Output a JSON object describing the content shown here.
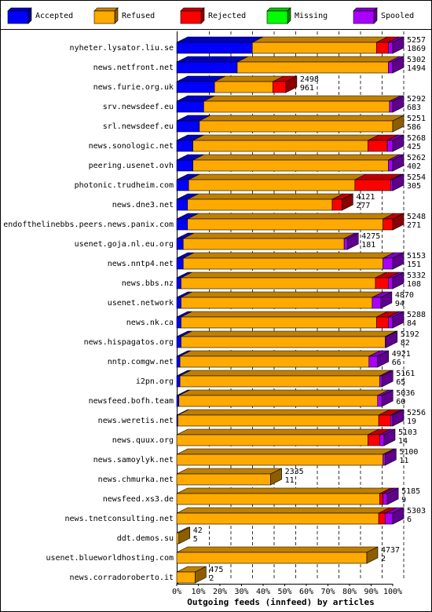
{
  "chart_data": {
    "type": "bar",
    "orientation": "horizontal",
    "stacked": true,
    "title": "Outgoing feeds (innfeed) by articles",
    "xlabel": "",
    "ylabel": "",
    "xlim": [
      0,
      100
    ],
    "x_unit": "%",
    "x_ticks": [
      "0%",
      "10%",
      "20%",
      "30%",
      "40%",
      "50%",
      "60%",
      "70%",
      "80%",
      "90%",
      "100%"
    ],
    "grid": true,
    "legend_position": "top",
    "series": [
      {
        "name": "Accepted",
        "color": "#0000ff"
      },
      {
        "name": "Refused",
        "color": "#ffaa00"
      },
      {
        "name": "Rejected",
        "color": "#ff0000"
      },
      {
        "name": "Missing",
        "color": "#00ff00"
      },
      {
        "name": "Spooled",
        "color": "#aa00ff"
      }
    ],
    "rows": [
      {
        "name": "nyheter.lysator.liu.se",
        "total": "5257",
        "accepted": "1869",
        "segments": [
          35,
          57.5,
          5.5,
          0,
          2
        ]
      },
      {
        "name": "news.netfront.net",
        "total": "5302",
        "accepted": "1494",
        "segments": [
          28,
          70,
          0,
          0,
          2
        ]
      },
      {
        "name": "news.furie.org.uk",
        "total": "2498",
        "accepted": "961",
        "segments": [
          17.5,
          27,
          6,
          0,
          0
        ]
      },
      {
        "name": "srv.newsdeef.eu",
        "total": "5292",
        "accepted": "683",
        "segments": [
          12.5,
          86,
          0,
          0,
          1.5
        ]
      },
      {
        "name": "srl.newsdeef.eu",
        "total": "5251",
        "accepted": "586",
        "segments": [
          10.5,
          89.5,
          0,
          0,
          0
        ]
      },
      {
        "name": "news.sonologic.net",
        "total": "5268",
        "accepted": "425",
        "segments": [
          7.5,
          81,
          9,
          0,
          2.5
        ]
      },
      {
        "name": "peering.usenet.ovh",
        "total": "5262",
        "accepted": "402",
        "segments": [
          7.5,
          90.5,
          0,
          0,
          2
        ]
      },
      {
        "name": "photonic.trudheim.com",
        "total": "5254",
        "accepted": "305",
        "segments": [
          5.5,
          77,
          16.5,
          0,
          1
        ]
      },
      {
        "name": "news.dne3.net",
        "total": "4121",
        "accepted": "277",
        "segments": [
          5,
          67,
          4.5,
          0,
          0
        ]
      },
      {
        "name": "endofthelinebbs.peers.news.panix.com",
        "total": "5248",
        "accepted": "271",
        "segments": [
          5,
          90.5,
          4.5,
          0,
          0
        ]
      },
      {
        "name": "usenet.goja.nl.eu.org",
        "total": "4275",
        "accepted": "181",
        "segments": [
          3,
          74.5,
          0,
          0,
          1.5
        ]
      },
      {
        "name": "news.nntp4.net",
        "total": "5153",
        "accepted": "151",
        "segments": [
          3,
          92.5,
          0,
          0,
          4.5
        ]
      },
      {
        "name": "news.bbs.nz",
        "total": "5332",
        "accepted": "108",
        "segments": [
          2,
          90,
          6,
          0,
          2
        ]
      },
      {
        "name": "usenet.network",
        "total": "4870",
        "accepted": "94",
        "segments": [
          2,
          88.5,
          0,
          0,
          4
        ]
      },
      {
        "name": "news.nk.ca",
        "total": "5288",
        "accepted": "84",
        "segments": [
          2,
          90.5,
          5.5,
          0,
          2
        ]
      },
      {
        "name": "news.hispagatos.org",
        "total": "5192",
        "accepted": "82",
        "segments": [
          2,
          94.5,
          0,
          0,
          0.5
        ]
      },
      {
        "name": "nntp.comgw.net",
        "total": "4921",
        "accepted": "66",
        "segments": [
          1.5,
          87.5,
          0,
          0,
          4
        ]
      },
      {
        "name": "i2pn.org",
        "total": "5161",
        "accepted": "65",
        "segments": [
          1.5,
          92.5,
          0,
          0,
          1
        ]
      },
      {
        "name": "newsfeed.bofh.team",
        "total": "5036",
        "accepted": "60",
        "segments": [
          1,
          92,
          0,
          0,
          2
        ]
      },
      {
        "name": "news.weretis.net",
        "total": "5256",
        "accepted": "19",
        "segments": [
          0.5,
          93,
          5.5,
          0,
          1
        ]
      },
      {
        "name": "news.quux.org",
        "total": "5103",
        "accepted": "14",
        "segments": [
          0,
          88.5,
          5.5,
          0,
          2
        ]
      },
      {
        "name": "news.samoylyk.net",
        "total": "5100",
        "accepted": "11",
        "segments": [
          0,
          95.5,
          0,
          0,
          1
        ]
      },
      {
        "name": "news.chmurka.net",
        "total": "2335",
        "accepted": "11",
        "segments": [
          0,
          43.5,
          0,
          0,
          0
        ]
      },
      {
        "name": "newsfeed.xs3.de",
        "total": "5185",
        "accepted": "9",
        "segments": [
          0,
          94,
          1.5,
          0,
          2
        ]
      },
      {
        "name": "news.tnetconsulting.net",
        "total": "5303",
        "accepted": "6",
        "segments": [
          0,
          93.5,
          3,
          0,
          3.5
        ]
      },
      {
        "name": "ddt.demos.su",
        "total": "42",
        "accepted": "5",
        "segments": [
          0,
          1,
          0,
          0,
          0
        ]
      },
      {
        "name": "usenet.blueworldhosting.com",
        "total": "4737",
        "accepted": "2",
        "segments": [
          0,
          88,
          0,
          0,
          0
        ]
      },
      {
        "name": "news.corradoroberto.it",
        "total": "475",
        "accepted": "2",
        "segments": [
          0,
          8.5,
          0,
          0,
          0
        ]
      }
    ]
  }
}
